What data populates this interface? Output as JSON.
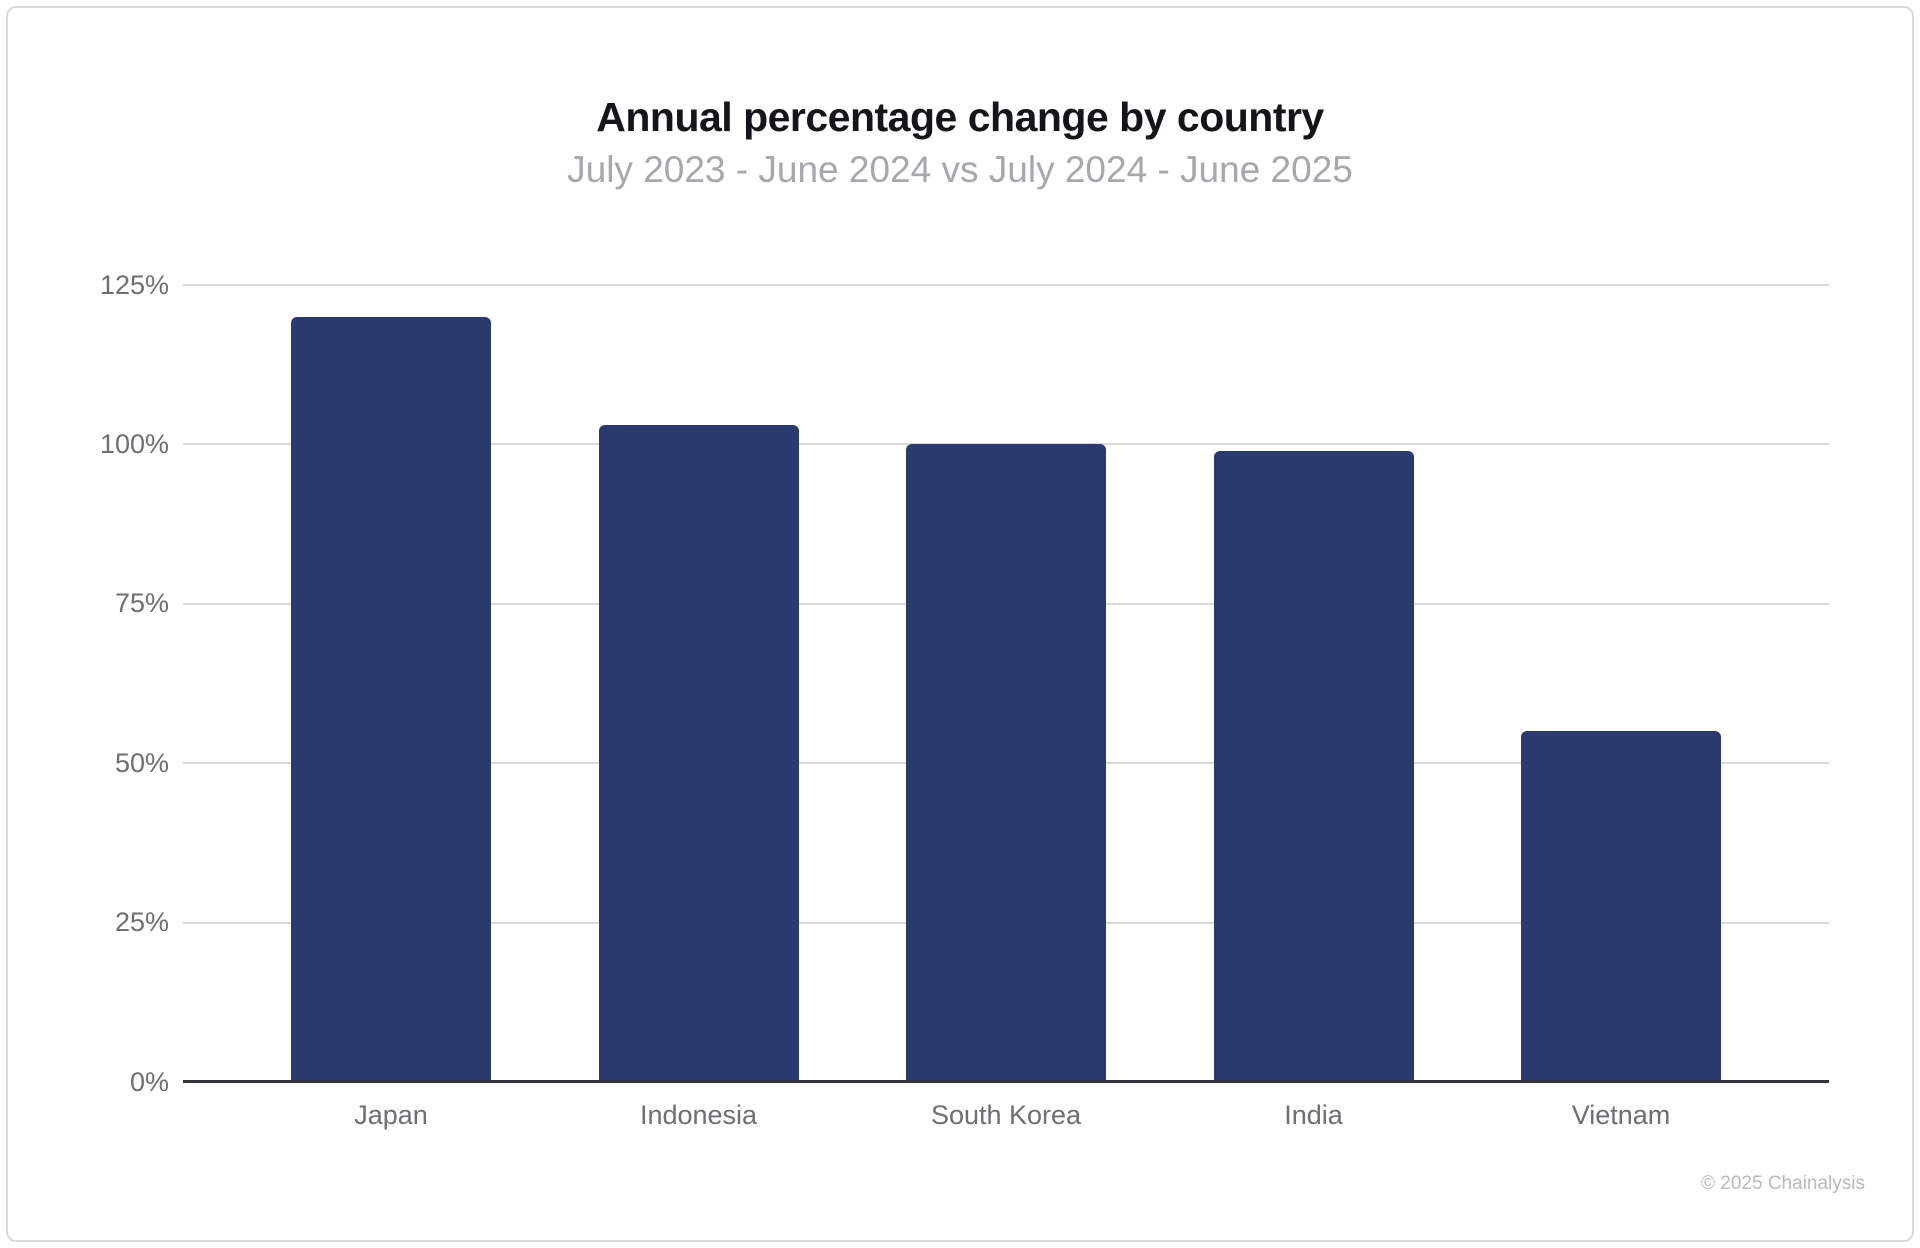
{
  "page": {
    "footer": "© 2025 Chainalysis"
  },
  "chart_data": {
    "type": "bar",
    "title": "Annual percentage change by country",
    "subtitle": "July 2023 - June 2024 vs July 2024 - June 2025",
    "categories": [
      "Japan",
      "Indonesia",
      "South Korea",
      "India",
      "Vietnam"
    ],
    "values": [
      120,
      103,
      100,
      99,
      55
    ],
    "value_unit": "%",
    "xlabel": "",
    "ylabel": "",
    "ylim": [
      0,
      125
    ],
    "ytick_step": 25,
    "ytick_labels": [
      "0%",
      "25%",
      "50%",
      "75%",
      "100%",
      "125%"
    ],
    "grid": "horizontal",
    "legend": "none",
    "colors": {
      "bar": "#2a3a6e",
      "gridline": "#d9d9d9",
      "axis_line": "#35353a",
      "tick_text": "#6e6e73",
      "title_text": "#141419",
      "subtitle_text": "#a7a7ac",
      "footer_text": "#b9b9bd",
      "page_border": "#d9d9dc",
      "background": "#ffffff"
    }
  }
}
